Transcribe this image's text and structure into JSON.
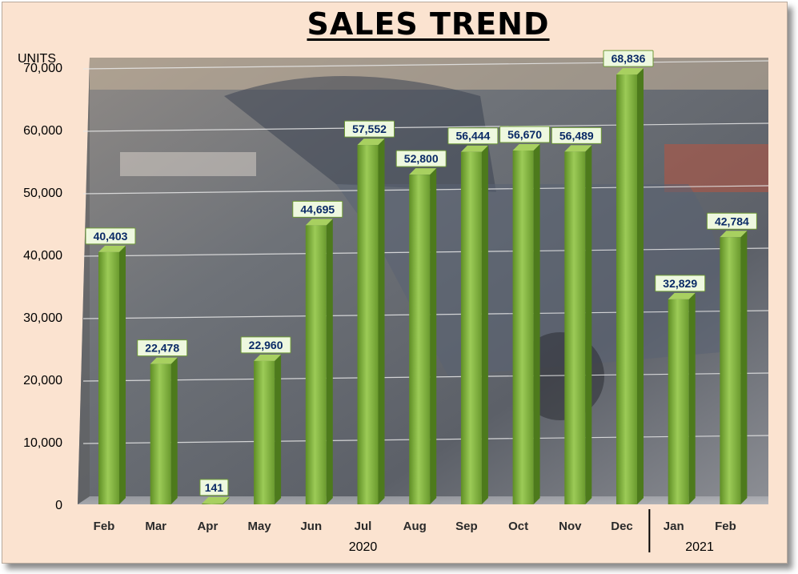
{
  "chart_data": {
    "type": "bar",
    "title": "SALES TREND",
    "ylabel": "UNITS",
    "xlabel": "",
    "ylim": [
      0,
      70000
    ],
    "yticks": [
      "0",
      "10,000",
      "20,000",
      "30,000",
      "40,000",
      "50,000",
      "60,000",
      "70,000"
    ],
    "grid": true,
    "categories": [
      "Feb",
      "Mar",
      "Apr",
      "May",
      "Jun",
      "Jul",
      "Aug",
      "Sep",
      "Oct",
      "Nov",
      "Dec",
      "Jan",
      "Feb"
    ],
    "values": [
      40403,
      22478,
      141,
      22960,
      44695,
      57552,
      52800,
      56444,
      56670,
      56489,
      68836,
      32829,
      42784
    ],
    "data_labels": [
      "40,403",
      "22,478",
      "141",
      "22,960",
      "44,695",
      "57,552",
      "52,800",
      "56,444",
      "56,670",
      "56,489",
      "68,836",
      "32,829",
      "42,784"
    ],
    "year_groups": [
      {
        "label": "2020",
        "start": 0,
        "end": 10
      },
      {
        "label": "2021",
        "start": 11,
        "end": 12
      }
    ],
    "colors": {
      "bar_front": "#7fae3f",
      "bar_side": "#4d7a1c",
      "bar_top": "#a8d060",
      "label_box_fill": "#eef8df",
      "label_box_border": "#6f9a37",
      "label_text": "#0a2a66",
      "page_background": "#fbe3d0"
    }
  }
}
